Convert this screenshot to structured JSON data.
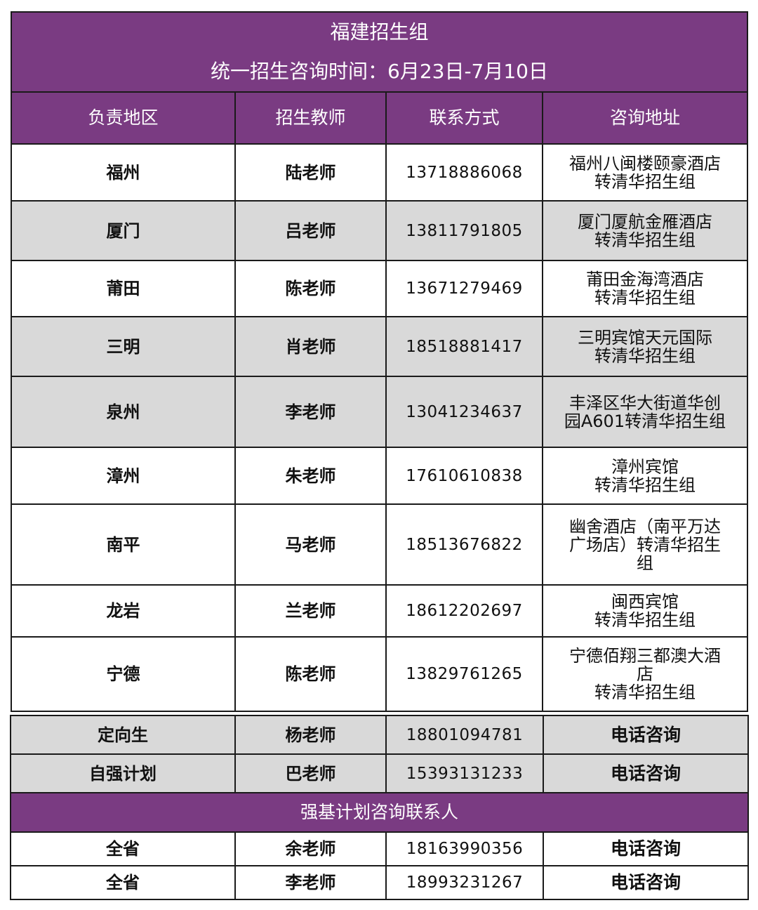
{
  "title": "福建招生组",
  "subtitle": "统一招生咨询时间：6月23日-7月10日",
  "headers": [
    "负责地区",
    "招生教师",
    "联系方式",
    "咨询地址"
  ],
  "colors": {
    "header_purple": "#7a3b82",
    "row_gray": "#d9d9d9"
  },
  "rows": [
    {
      "region": "福州",
      "teacher": "陆老师",
      "phone": "13718886068",
      "address": "福州八闽楼颐豪酒店\n转清华招生组",
      "shaded": false
    },
    {
      "region": "厦门",
      "teacher": "吕老师",
      "phone": "13811791805",
      "address": "厦门厦航金雁酒店\n转清华招生组",
      "shaded": true
    },
    {
      "region": "莆田",
      "teacher": "陈老师",
      "phone": "13671279469",
      "address": "莆田金海湾酒店\n转清华招生组",
      "shaded": false
    },
    {
      "region": "三明",
      "teacher": "肖老师",
      "phone": "18518881417",
      "address": "三明宾馆天元国际\n转清华招生组",
      "shaded": true
    },
    {
      "region": "泉州",
      "teacher": "李老师",
      "phone": "13041234637",
      "address": "丰泽区华大街道华创\n园A601转清华招生组",
      "shaded": true
    },
    {
      "region": "漳州",
      "teacher": "朱老师",
      "phone": "17610610838",
      "address": "漳州宾馆\n转清华招生组",
      "shaded": false
    },
    {
      "region": "南平",
      "teacher": "马老师",
      "phone": "18513676822",
      "address": "幽舍酒店（南平万达\n广场店）转清华招生\n组",
      "shaded": false
    },
    {
      "region": "龙岩",
      "teacher": "兰老师",
      "phone": "18612202697",
      "address": "闽西宾馆\n转清华招生组",
      "shaded": false
    },
    {
      "region": "宁德",
      "teacher": "陈老师",
      "phone": "13829761265",
      "address": "宁德佰翔三都澳大酒\n店\n转清华招生组",
      "shaded": false
    }
  ],
  "special_rows": [
    {
      "region": "定向生",
      "teacher": "杨老师",
      "phone": "18801094781",
      "address": "电话咨询"
    },
    {
      "region": "自强计划",
      "teacher": "巴老师",
      "phone": "15393131233",
      "address": "电话咨询"
    }
  ],
  "qiangji_title": "强基计划咨询联系人",
  "qiangji_rows": [
    {
      "region": "全省",
      "teacher": "余老师",
      "phone": "18163990356",
      "address": "电话咨询"
    },
    {
      "region": "全省",
      "teacher": "李老师",
      "phone": "18993231267",
      "address": "电话咨询"
    }
  ]
}
